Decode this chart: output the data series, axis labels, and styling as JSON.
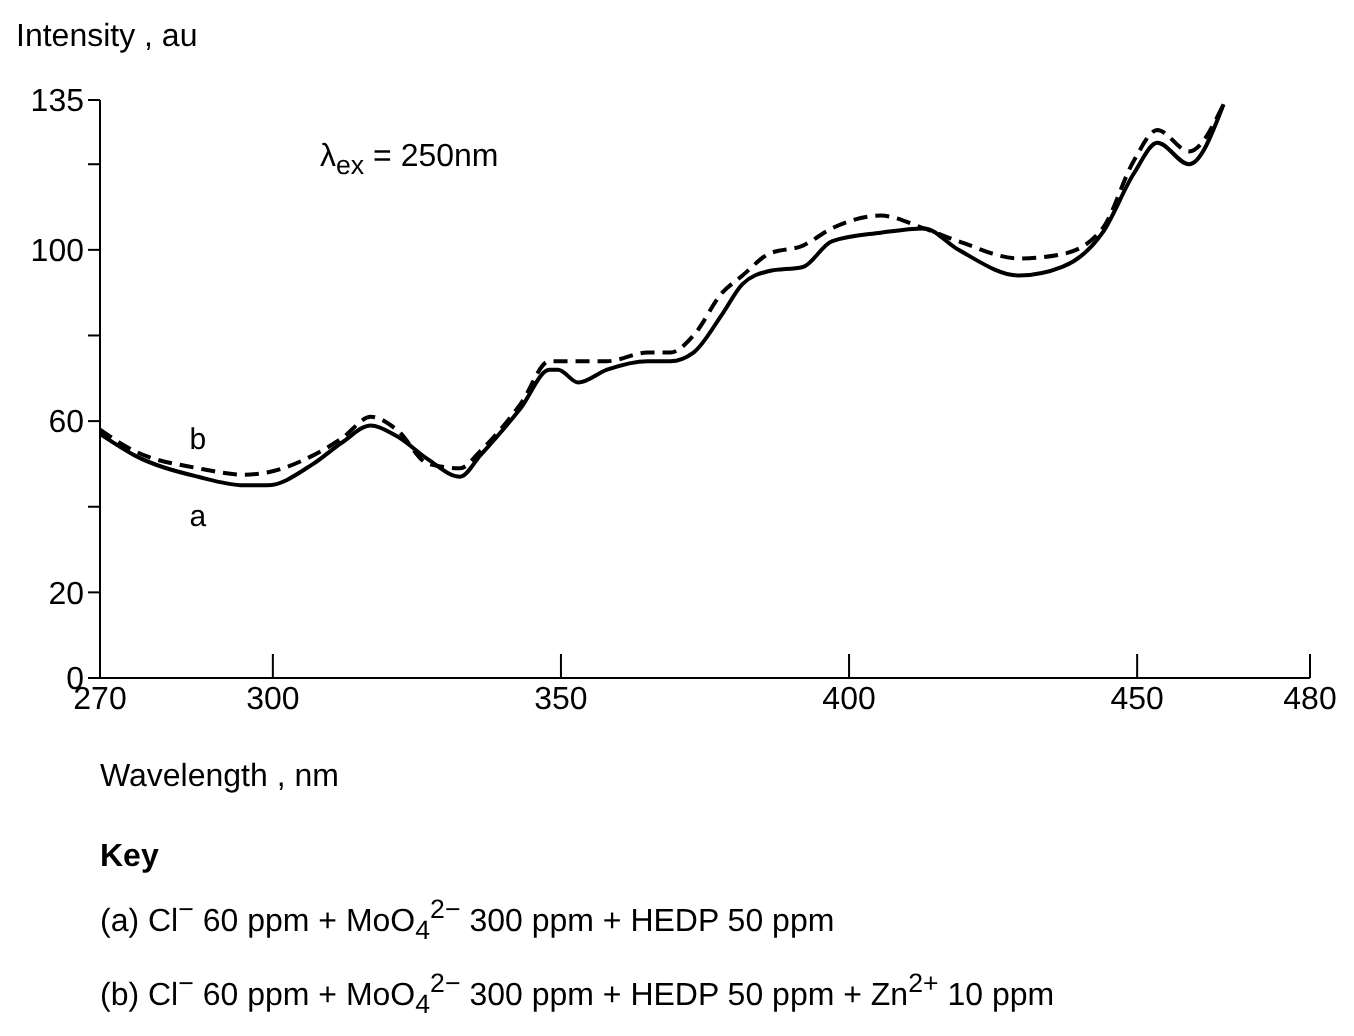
{
  "chart_data": {
    "type": "line",
    "xlabel": "Wavelength , nm",
    "ylabel": "Intensity , au",
    "x": [
      270,
      276,
      287,
      295,
      299,
      307,
      312,
      317,
      321.5,
      327,
      332.5,
      336,
      343,
      348,
      349.5,
      353,
      358,
      365,
      369,
      373,
      378,
      381.5,
      386,
      392,
      397,
      405.5,
      413,
      419,
      429.5,
      437,
      444,
      449.5,
      453.5,
      459,
      465
    ],
    "series": [
      {
        "name": "a",
        "color": "#000000",
        "line_style": "solid",
        "values": [
          57,
          52,
          47,
          45,
          45,
          50,
          55,
          59,
          56.5,
          51,
          47,
          52,
          63,
          72,
          72,
          69,
          72,
          74,
          74,
          76,
          85,
          92,
          95,
          96,
          102,
          104,
          105,
          100,
          94,
          96,
          104,
          118,
          125,
          120,
          134
        ]
      },
      {
        "name": "b",
        "color": "#000000",
        "line_style": "dashed",
        "values": [
          58,
          53,
          49,
          47.5,
          48,
          52,
          56,
          61,
          58,
          50,
          49,
          53,
          64,
          74,
          74,
          74,
          74,
          76,
          76,
          80,
          90,
          94,
          99,
          101,
          105,
          108,
          105,
          102,
          98,
          99,
          105,
          121,
          128,
          123,
          134
        ]
      }
    ],
    "xlim": [
      270,
      480
    ],
    "xticks": [
      270,
      300,
      350,
      400,
      450,
      480
    ],
    "ylim": [
      0,
      135
    ],
    "yticks": [
      0,
      20,
      {
        "value": 40,
        "label": null
      },
      60,
      {
        "value": 80,
        "label": null
      },
      100,
      {
        "value": 120,
        "label": null
      },
      135
    ],
    "grid": false,
    "annotations": [
      "λ$_{ex}$ = 250nm",
      "Key",
      "(a) Cl$^{−}$ 60 ppm + MoO$_{4}$$^{2−}$ 300 ppm + HEDP 50 ppm",
      "(b) Cl$^{−}$ 60 ppm + MoO$_{4}$$^{2−}$ 300 ppm + HEDP 50 ppm + Zn$^{2+}$ 10 ppm"
    ]
  }
}
